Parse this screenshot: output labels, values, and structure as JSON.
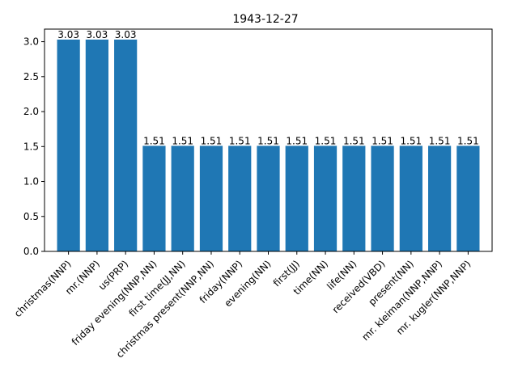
{
  "chart_data": {
    "type": "bar",
    "title": "1943-12-27",
    "xlabel": "",
    "ylabel": "",
    "categories": [
      "christmas(NNP)",
      "mr.(NNP)",
      "us(PRP)",
      "friday evening(NNP,NN)",
      "first time(JJ,NN)",
      "christmas present(NNP,NN)",
      "friday(NNP)",
      "evening(NN)",
      "first(JJ)",
      "time(NN)",
      "life(NN)",
      "received(VBD)",
      "present(NN)",
      "mr. kleiman(NNP,NNP)",
      "mr. kugler(NNP,NNP)"
    ],
    "values": [
      3.03,
      3.03,
      3.03,
      1.51,
      1.51,
      1.51,
      1.51,
      1.51,
      1.51,
      1.51,
      1.51,
      1.51,
      1.51,
      1.51,
      1.51
    ],
    "value_labels": [
      "3.03",
      "3.03",
      "3.03",
      "1.51",
      "1.51",
      "1.51",
      "1.51",
      "1.51",
      "1.51",
      "1.51",
      "1.51",
      "1.51",
      "1.51",
      "1.51",
      "1.51"
    ],
    "ylim": [
      0,
      3.18
    ],
    "yticks": [
      0.0,
      0.5,
      1.0,
      1.5,
      2.0,
      2.5,
      3.0
    ],
    "ytick_labels": [
      "0.0",
      "0.5",
      "1.0",
      "1.5",
      "2.0",
      "2.5",
      "3.0"
    ],
    "bar_color": "#1f77b4",
    "grid": false,
    "legend": "none"
  }
}
